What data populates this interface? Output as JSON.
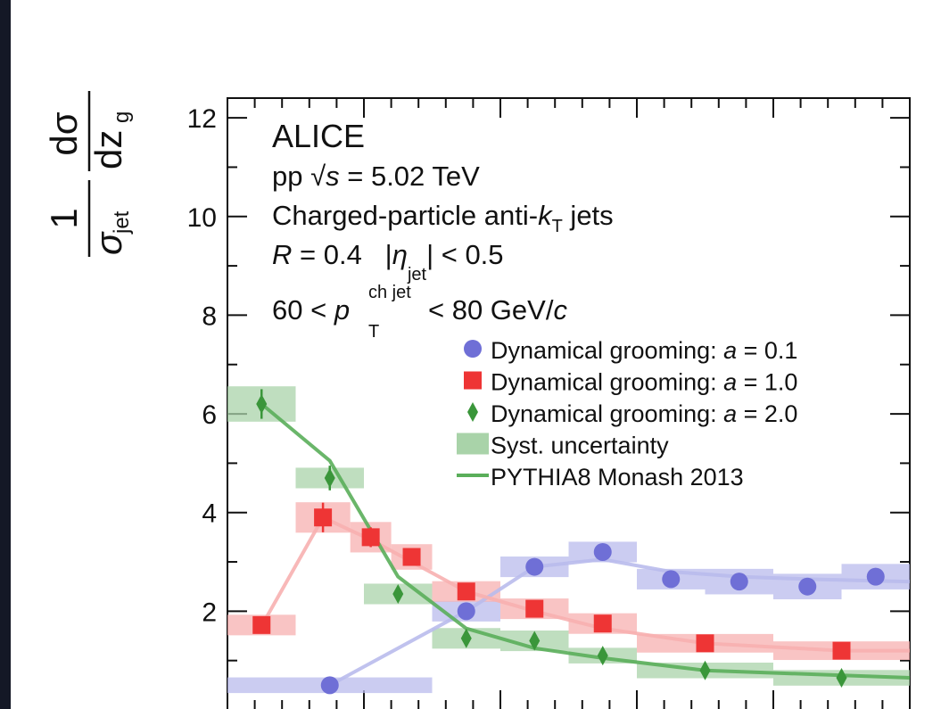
{
  "chart_data": {
    "type": "errorbar",
    "annotations": {
      "experiment": "ALICE",
      "energy": [
        "pp ",
        "√",
        "s",
        " = 5.02 TeV"
      ],
      "jets": [
        "Charged-particle anti-",
        "k",
        "T",
        " jets"
      ],
      "radius": [
        "R",
        " = 0.4   |",
        "η",
        "jet",
        "| < 0.5"
      ],
      "pt": [
        "60 < ",
        "p",
        "T",
        "ch jet",
        " < 80 GeV/",
        "c"
      ]
    },
    "y_label": {
      "num1": "1",
      "den1": "σ",
      "den1_sub": "jet",
      "num2": "dσ",
      "den2": "dz",
      "den2_sub": "g"
    },
    "xlim": [
      0,
      0.5
    ],
    "xticks": [
      0,
      0.1,
      0.2,
      0.3,
      0.4,
      0.5
    ],
    "xminor_ticks": [
      0.02,
      0.04,
      0.06,
      0.08,
      0.12,
      0.14,
      0.16,
      0.18,
      0.22,
      0.24,
      0.26,
      0.28,
      0.32,
      0.34,
      0.36,
      0.38,
      0.42,
      0.44,
      0.46,
      0.48
    ],
    "ylim": [
      0,
      12.4
    ],
    "yticks": [
      2,
      4,
      6,
      8,
      10,
      12
    ],
    "yminor_ticks": [
      1,
      3,
      5,
      7,
      9,
      11
    ],
    "legend_position": "right",
    "legend_extra": [
      "Syst. uncertainty",
      "PYTHIA8 Monash 2013"
    ],
    "syst_color": "#a9d3a9",
    "model_color": "#5aae5a",
    "series": [
      {
        "name": "Dynamical grooming: a = 0.1",
        "name_parts": [
          "Dynamical grooming: ",
          "a",
          " = 0.1"
        ],
        "marker": "circle",
        "color": "#6f6fd6",
        "light": "#b9bbec",
        "x": [
          0.075,
          0.175,
          0.225,
          0.275,
          0.325,
          0.375,
          0.425,
          0.475
        ],
        "xerr": [
          0.075,
          0.025,
          0.025,
          0.025,
          0.025,
          0.025,
          0.025,
          0.025
        ],
        "values": [
          0.5,
          2.0,
          2.9,
          3.2,
          2.65,
          2.6,
          2.5,
          2.7
        ],
        "yerr": [
          0.05,
          0.1,
          0.15,
          0.15,
          0.1,
          0.1,
          0.1,
          0.15
        ],
        "syst": [
          0.05,
          0.1,
          0.1,
          0.1,
          0.1,
          0.15,
          0.15,
          0.15
        ],
        "model_x": [
          0.075,
          0.175,
          0.225,
          0.275,
          0.325,
          0.375,
          0.425,
          0.5
        ],
        "model_values": [
          0.5,
          2.0,
          2.9,
          3.05,
          2.8,
          2.7,
          2.65,
          2.6
        ]
      },
      {
        "name": "Dynamical grooming: a = 1.0",
        "name_parts": [
          "Dynamical grooming: ",
          "a",
          " = 1.0"
        ],
        "marker": "square",
        "color": "#ee3535",
        "light": "#f7b0b0",
        "x": [
          0.025,
          0.07,
          0.105,
          0.135,
          0.175,
          0.225,
          0.275,
          0.35,
          0.45
        ],
        "xerr": [
          0.025,
          0.02,
          0.015,
          0.015,
          0.025,
          0.025,
          0.025,
          0.05,
          0.05
        ],
        "values": [
          1.72,
          3.9,
          3.5,
          3.1,
          2.4,
          2.05,
          1.75,
          1.35,
          1.2
        ],
        "yerr": [
          0.08,
          0.3,
          0.2,
          0.15,
          0.1,
          0.1,
          0.1,
          0.08,
          0.08
        ],
        "syst": [
          0.1,
          0.2,
          0.2,
          0.15,
          0.1,
          0.1,
          0.1,
          0.08,
          0.08
        ],
        "model_x": [
          0.025,
          0.07,
          0.105,
          0.135,
          0.175,
          0.225,
          0.275,
          0.35,
          0.45,
          0.5
        ],
        "model_values": [
          1.7,
          3.9,
          3.45,
          3.0,
          2.4,
          2.0,
          1.65,
          1.35,
          1.2,
          1.2
        ]
      },
      {
        "name": "Dynamical grooming: a = 2.0",
        "name_parts": [
          "Dynamical grooming: ",
          "a",
          " = 2.0"
        ],
        "marker": "diamond",
        "color": "#3a963a",
        "light": "#a9d3a9",
        "x": [
          0.025,
          0.075,
          0.125,
          0.175,
          0.225,
          0.275,
          0.35,
          0.45
        ],
        "xerr": [
          0.025,
          0.025,
          0.025,
          0.025,
          0.025,
          0.025,
          0.05,
          0.05
        ],
        "values": [
          6.2,
          4.7,
          2.35,
          1.45,
          1.4,
          1.1,
          0.8,
          0.65
        ],
        "yerr": [
          0.3,
          0.25,
          0.15,
          0.1,
          0.1,
          0.1,
          0.05,
          0.05
        ],
        "syst": [
          0.25,
          0.1,
          0.1,
          0.1,
          0.1,
          0.05,
          0.05,
          0.05
        ],
        "model_x": [
          0.025,
          0.075,
          0.125,
          0.175,
          0.225,
          0.275,
          0.35,
          0.5
        ],
        "model_values": [
          6.2,
          5.05,
          2.7,
          1.65,
          1.25,
          1.05,
          0.8,
          0.65
        ]
      }
    ]
  }
}
